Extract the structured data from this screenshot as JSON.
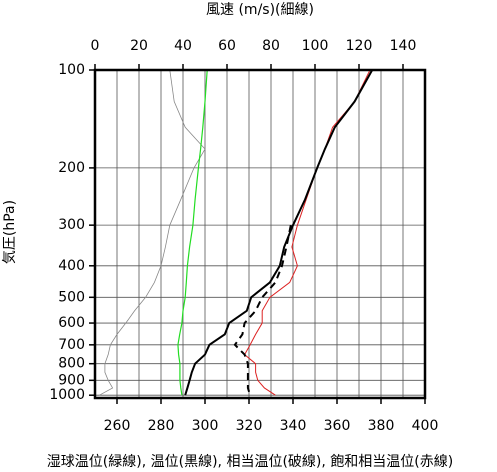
{
  "chart_data": {
    "type": "line",
    "title": "風速 (m/s)(細線)",
    "ylabel": "気圧(hPa)",
    "xlabel": "湿球温位(緑線), 温位(黒線), 相当温位(破線), 飽和相当温位(赤線)",
    "y_log": true,
    "ylim": [
      100,
      1020
    ],
    "yticks": [
      100,
      200,
      300,
      400,
      500,
      600,
      700,
      800,
      900,
      1000
    ],
    "xlim": [
      250,
      400
    ],
    "xticks": [
      260,
      280,
      300,
      320,
      340,
      360,
      380,
      400
    ],
    "xgrid": [
      260,
      270,
      280,
      290,
      300,
      310,
      320,
      330,
      340,
      350,
      360,
      370,
      380,
      390
    ],
    "x2lim": [
      0,
      150
    ],
    "x2ticks": [
      0,
      20,
      40,
      60,
      80,
      100,
      120,
      140
    ],
    "pressure": [
      100,
      125,
      150,
      175,
      200,
      250,
      300,
      350,
      400,
      450,
      500,
      550,
      600,
      650,
      700,
      750,
      800,
      850,
      900,
      950,
      1000
    ],
    "series": [
      {
        "name": "風速",
        "color": "#888888",
        "axis": "x2",
        "width": 0.8,
        "values": [
          34,
          36,
          41,
          50,
          45,
          39,
          34,
          32,
          30,
          27,
          23,
          18,
          14,
          10,
          7,
          6,
          4.5,
          4.5,
          6,
          8,
          2
        ]
      },
      {
        "name": "湿球温位",
        "color": "#22dd22",
        "width": 1.2,
        "values": [
          301,
          300,
          299,
          298,
          297,
          295.5,
          294.5,
          293,
          292,
          291.5,
          291,
          290,
          289.5,
          288.5,
          287.7,
          288,
          288.6,
          288.6,
          288.6,
          289,
          289.5
        ]
      },
      {
        "name": "飽和相当温位",
        "color": "#dd2222",
        "width": 1,
        "values": [
          375,
          368,
          358,
          354.5,
          351,
          346,
          342,
          339.5,
          342,
          338.5,
          329.5,
          326,
          326,
          323,
          320.5,
          318,
          323,
          323,
          324,
          327,
          332
        ]
      },
      {
        "name": "温位",
        "color": "#000000",
        "width": 2,
        "values": [
          376,
          368,
          359,
          354.5,
          351,
          345.5,
          340,
          336,
          334,
          329.5,
          321,
          319,
          311,
          309,
          302,
          300,
          295.5,
          294,
          293,
          292,
          291
        ]
      },
      {
        "name": "相当温位",
        "color": "#000000",
        "width": 2,
        "dashed": true,
        "values": [
          null,
          null,
          null,
          null,
          null,
          null,
          339,
          337,
          335,
          332,
          326,
          323,
          318,
          317,
          313.6,
          318,
          319.5,
          319.5,
          319.5,
          319.5,
          320.5
        ]
      }
    ]
  }
}
